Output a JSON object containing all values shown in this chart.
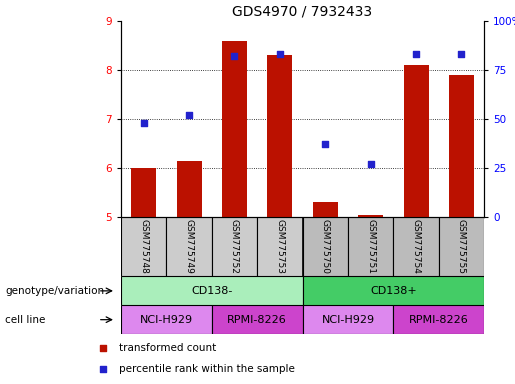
{
  "title": "GDS4970 / 7932433",
  "samples": [
    "GSM775748",
    "GSM775749",
    "GSM775752",
    "GSM775753",
    "GSM775750",
    "GSM775751",
    "GSM775754",
    "GSM775755"
  ],
  "transformed_count": [
    6.0,
    6.15,
    8.6,
    8.3,
    5.3,
    5.05,
    8.1,
    7.9
  ],
  "percentile_rank": [
    48,
    52,
    82,
    83,
    37,
    27,
    83,
    83
  ],
  "ylim_left": [
    5,
    9
  ],
  "ylim_right": [
    0,
    100
  ],
  "yticks_left": [
    5,
    6,
    7,
    8,
    9
  ],
  "yticks_right": [
    0,
    25,
    50,
    75,
    100
  ],
  "yticklabels_right": [
    "0",
    "25",
    "50",
    "75",
    "100%"
  ],
  "bar_color": "#bb1100",
  "dot_color": "#2222cc",
  "bar_bottom": 5.0,
  "sample_box_color_1": "#cccccc",
  "sample_box_color_2": "#bbbbbb",
  "genotype_groups": [
    {
      "label": "CD138-",
      "color": "#aaeebb",
      "start": 0,
      "end": 4
    },
    {
      "label": "CD138+",
      "color": "#44cc66",
      "start": 4,
      "end": 8
    }
  ],
  "cell_line_groups": [
    {
      "label": "NCI-H929",
      "color": "#dd88ee",
      "start": 0,
      "end": 2
    },
    {
      "label": "RPMI-8226",
      "color": "#cc44cc",
      "start": 2,
      "end": 4
    },
    {
      "label": "NCI-H929",
      "color": "#dd88ee",
      "start": 4,
      "end": 6
    },
    {
      "label": "RPMI-8226",
      "color": "#cc44cc",
      "start": 6,
      "end": 8
    }
  ],
  "legend_items": [
    {
      "label": "transformed count",
      "color": "#bb1100",
      "marker": "s"
    },
    {
      "label": "percentile rank within the sample",
      "color": "#2222cc",
      "marker": "s"
    }
  ],
  "xlabel_genotype": "genotype/variation",
  "xlabel_cellline": "cell line",
  "title_fontsize": 10,
  "tick_fontsize": 7.5,
  "label_fontsize": 8,
  "bar_width": 0.55,
  "group_separator": 3.5
}
